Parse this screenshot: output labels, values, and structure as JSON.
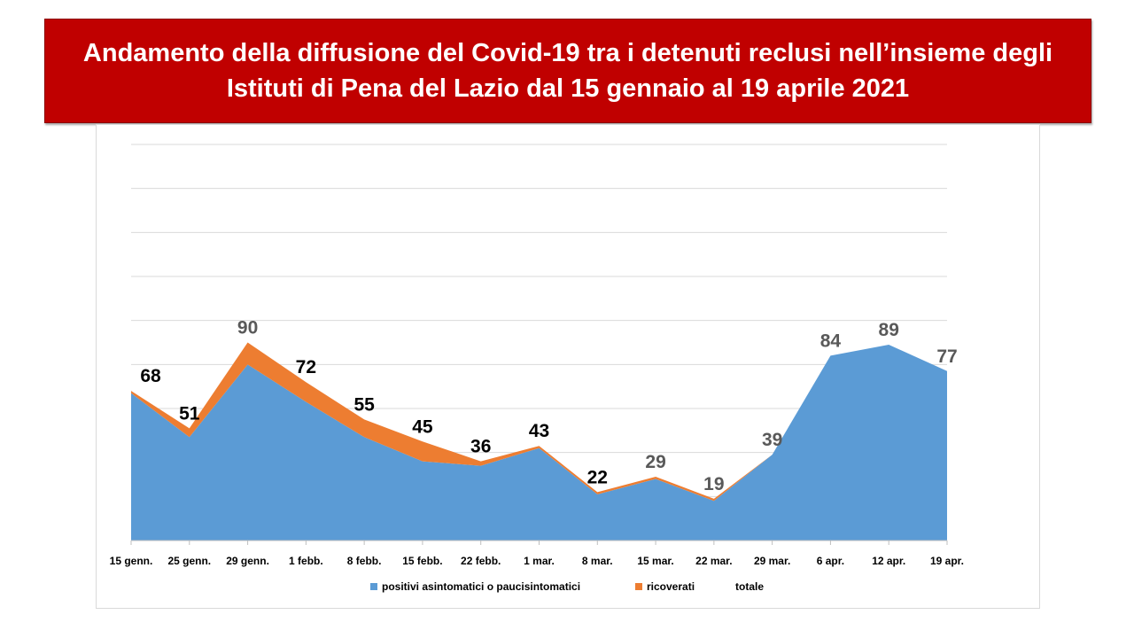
{
  "title": "Andamento della diffusione del Covid-19 tra i detenuti reclusi nell’insieme degli Istituti di Pena del Lazio dal 15 gennaio al 19 aprile 2021",
  "chart_data": {
    "type": "area",
    "stacked": true,
    "categories": [
      "15 genn.",
      "25 genn.",
      "29 genn.",
      "1 febb.",
      "8 febb.",
      "15 febb.",
      "22 febb.",
      "1 mar.",
      "8 mar.",
      "15 mar.",
      "22 mar.",
      "29 mar.",
      "6 apr.",
      "12 apr.",
      "19 apr."
    ],
    "series": [
      {
        "name": "positivi asintomatici o paucisintomatici",
        "color": "#5b9bd5",
        "values": [
          67,
          47,
          80,
          63,
          47,
          36,
          34,
          42,
          21,
          28,
          18,
          39,
          84,
          89,
          77
        ]
      },
      {
        "name": "ricoverati",
        "color": "#ed7d31",
        "values": [
          1,
          4,
          10,
          9,
          8,
          9,
          2,
          1,
          1,
          1,
          1,
          0,
          0,
          0,
          0
        ]
      }
    ],
    "totale": {
      "name": "totale",
      "values": [
        68,
        51,
        90,
        72,
        55,
        45,
        36,
        43,
        22,
        29,
        19,
        39,
        84,
        89,
        77
      ],
      "label_colors": [
        "#000000",
        "#000000",
        "#595959",
        "#000000",
        "#000000",
        "#000000",
        "#000000",
        "#000000",
        "#000000",
        "#595959",
        "#595959",
        "#595959",
        "#595959",
        "#595959",
        "#595959"
      ]
    },
    "ylim": [
      0,
      180
    ],
    "grid": true,
    "legend_position": "bottom"
  }
}
